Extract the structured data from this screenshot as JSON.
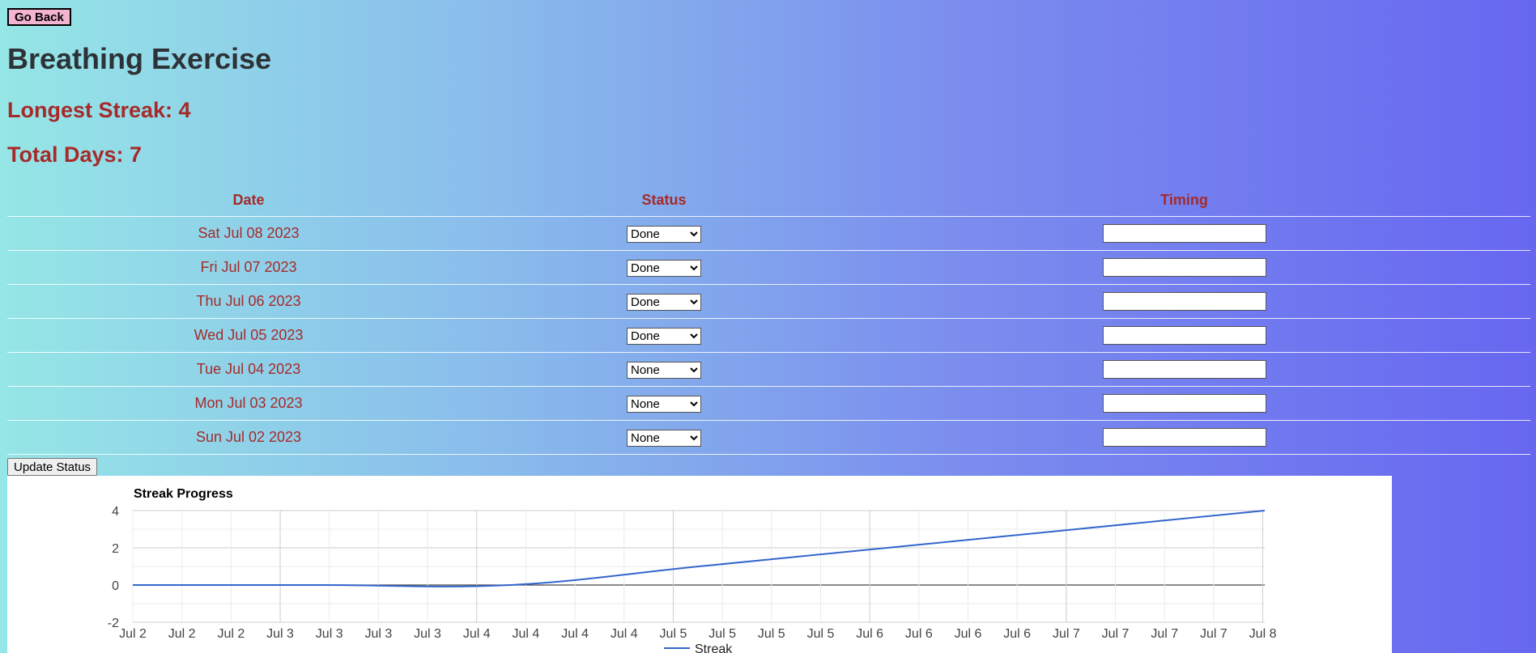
{
  "header": {
    "back_label": "Go Back",
    "title": "Breathing Exercise",
    "longest_streak_text": "Longest Streak: 4",
    "total_days_text": "Total Days: 7"
  },
  "table": {
    "columns": [
      "Date",
      "Status",
      "Timing"
    ],
    "status_options": [
      "Done",
      "None"
    ],
    "rows": [
      {
        "date": "Sat Jul 08 2023",
        "status": "Done",
        "timing": ""
      },
      {
        "date": "Fri Jul 07 2023",
        "status": "Done",
        "timing": ""
      },
      {
        "date": "Thu Jul 06 2023",
        "status": "Done",
        "timing": ""
      },
      {
        "date": "Wed Jul 05 2023",
        "status": "Done",
        "timing": ""
      },
      {
        "date": "Tue Jul 04 2023",
        "status": "None",
        "timing": ""
      },
      {
        "date": "Mon Jul 03 2023",
        "status": "None",
        "timing": ""
      },
      {
        "date": "Sun Jul 02 2023",
        "status": "None",
        "timing": ""
      }
    ]
  },
  "update_label": "Update Status",
  "chart_data": {
    "type": "line",
    "title": "Streak Progress",
    "x": [
      "2023-07-02",
      "2023-07-03",
      "2023-07-04",
      "2023-07-05",
      "2023-07-06",
      "2023-07-07",
      "2023-07-08"
    ],
    "series": [
      {
        "name": "Streak",
        "values": [
          0,
          0,
          0,
          1,
          2,
          3,
          4
        ],
        "color": "#3366cc"
      }
    ],
    "x_tick_labels": [
      "Jul 2",
      "Jul 2",
      "Jul 2",
      "Jul 3",
      "Jul 3",
      "Jul 3",
      "Jul 3",
      "Jul 4",
      "Jul 4",
      "Jul 4",
      "Jul 4",
      "Jul 5",
      "Jul 5",
      "Jul 5",
      "Jul 5",
      "Jul 6",
      "Jul 6",
      "Jul 6",
      "Jul 6",
      "Jul 7",
      "Jul 7",
      "Jul 7",
      "Jul 7",
      "Jul 8"
    ],
    "y_ticks": [
      4,
      2,
      0,
      -2
    ],
    "ylim": [
      -2,
      4
    ],
    "grid": true,
    "legend_position": "bottom"
  }
}
